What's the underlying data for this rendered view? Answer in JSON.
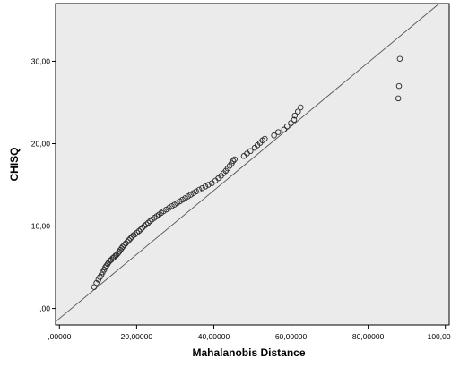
{
  "chart_data": {
    "type": "scatter",
    "title": "",
    "xlabel": "Mahalanobis Distance",
    "ylabel": "CHISQ",
    "xlim": [
      -1,
      101
    ],
    "ylim": [
      -2,
      37
    ],
    "grid": false,
    "x_ticks": [
      0,
      20,
      40,
      60,
      80,
      100
    ],
    "x_tick_labels": [
      ",00000",
      "20,00000",
      "40,00000",
      "60,00000",
      "80,00000",
      "100,00000"
    ],
    "y_ticks": [
      0,
      10,
      20,
      30
    ],
    "y_tick_labels": [
      ",00",
      "10,00",
      "20,00",
      "30,00"
    ],
    "reference_line": {
      "x": [
        -1,
        101
      ],
      "y": [
        -1.6,
        38
      ]
    },
    "series": [
      {
        "points": [
          [
            9.0,
            2.6
          ],
          [
            9.6,
            3.1
          ],
          [
            10.1,
            3.5
          ],
          [
            10.5,
            3.8
          ],
          [
            10.9,
            4.1
          ],
          [
            11.2,
            4.4
          ],
          [
            11.6,
            4.7
          ],
          [
            11.9,
            5.0
          ],
          [
            12.2,
            5.2
          ],
          [
            12.5,
            5.4
          ],
          [
            12.8,
            5.6
          ],
          [
            13.1,
            5.8
          ],
          [
            13.4,
            5.9
          ],
          [
            13.8,
            6.1
          ],
          [
            14.1,
            6.2
          ],
          [
            14.5,
            6.4
          ],
          [
            14.8,
            6.5
          ],
          [
            15.2,
            6.7
          ],
          [
            15.5,
            6.9
          ],
          [
            15.8,
            7.1
          ],
          [
            16.1,
            7.3
          ],
          [
            16.4,
            7.5
          ],
          [
            16.8,
            7.7
          ],
          [
            17.2,
            7.9
          ],
          [
            17.6,
            8.1
          ],
          [
            18.0,
            8.3
          ],
          [
            18.4,
            8.5
          ],
          [
            18.8,
            8.7
          ],
          [
            19.2,
            8.9
          ],
          [
            19.6,
            9.0
          ],
          [
            20.1,
            9.2
          ],
          [
            20.6,
            9.4
          ],
          [
            21.1,
            9.6
          ],
          [
            21.5,
            9.8
          ],
          [
            22.0,
            10.0
          ],
          [
            22.5,
            10.2
          ],
          [
            23.0,
            10.4
          ],
          [
            23.5,
            10.6
          ],
          [
            24.0,
            10.8
          ],
          [
            24.6,
            11.0
          ],
          [
            25.2,
            11.2
          ],
          [
            25.8,
            11.4
          ],
          [
            26.4,
            11.6
          ],
          [
            27.0,
            11.8
          ],
          [
            27.7,
            12.0
          ],
          [
            28.4,
            12.2
          ],
          [
            29.1,
            12.4
          ],
          [
            29.8,
            12.6
          ],
          [
            30.5,
            12.8
          ],
          [
            31.2,
            13.0
          ],
          [
            31.9,
            13.2
          ],
          [
            32.6,
            13.4
          ],
          [
            33.3,
            13.6
          ],
          [
            34.0,
            13.8
          ],
          [
            34.7,
            14.0
          ],
          [
            35.4,
            14.2
          ],
          [
            36.2,
            14.4
          ],
          [
            37.0,
            14.6
          ],
          [
            37.8,
            14.8
          ],
          [
            38.6,
            15.0
          ],
          [
            39.5,
            15.2
          ],
          [
            40.4,
            15.5
          ],
          [
            41.2,
            15.8
          ],
          [
            41.9,
            16.1
          ],
          [
            42.5,
            16.4
          ],
          [
            43.1,
            16.7
          ],
          [
            43.6,
            17.0
          ],
          [
            44.1,
            17.3
          ],
          [
            44.6,
            17.6
          ],
          [
            45.0,
            17.9
          ],
          [
            45.4,
            18.1
          ],
          [
            47.8,
            18.5
          ],
          [
            48.6,
            18.8
          ],
          [
            49.5,
            19.1
          ],
          [
            50.6,
            19.5
          ],
          [
            51.3,
            19.8
          ],
          [
            52.0,
            20.1
          ],
          [
            52.6,
            20.4
          ],
          [
            53.2,
            20.6
          ],
          [
            55.6,
            21.0
          ],
          [
            56.7,
            21.4
          ],
          [
            58.2,
            21.7
          ],
          [
            59.0,
            22.1
          ],
          [
            60.0,
            22.5
          ],
          [
            60.8,
            22.9
          ],
          [
            61.0,
            23.4
          ],
          [
            61.8,
            23.9
          ],
          [
            62.5,
            24.4
          ],
          [
            87.8,
            25.5
          ],
          [
            88.0,
            27.0
          ],
          [
            88.2,
            30.3
          ]
        ]
      }
    ]
  }
}
